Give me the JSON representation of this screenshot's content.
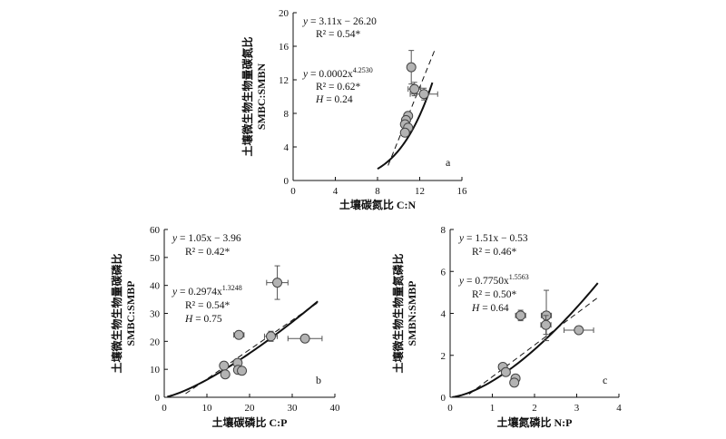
{
  "chart_data": [
    {
      "type": "scatter",
      "panel_label": "a",
      "xlabel": "土壤碳氮比 C:N",
      "ylabel": [
        "土壤微生物生物量碳氮比",
        "SMBC:SMBN"
      ],
      "xlim": [
        0,
        16
      ],
      "ylim": [
        0,
        20
      ],
      "xticks": [
        0,
        4,
        8,
        12,
        16
      ],
      "yticks": [
        0,
        4,
        8,
        12,
        16,
        20
      ],
      "equations": {
        "linear": [
          "y = 3.11x − 26.20",
          "R² = 0.54*"
        ],
        "power": [
          "y = 0.0002x^4.2530",
          "R² = 0.62*",
          "H = 0.24"
        ]
      },
      "points": [
        {
          "x": 11.2,
          "y": 13.5,
          "xerr": 0.3,
          "yerr": 2.0
        },
        {
          "x": 11.5,
          "y": 10.9,
          "xerr": 0.6,
          "yerr": 0.8
        },
        {
          "x": 12.4,
          "y": 10.3,
          "xerr": 1.3,
          "yerr": 0.7
        },
        {
          "x": 10.9,
          "y": 7.7,
          "xerr": 0.3,
          "yerr": 0.4
        },
        {
          "x": 10.7,
          "y": 7.2,
          "xerr": 0.2,
          "yerr": 0.3
        },
        {
          "x": 10.6,
          "y": 6.7,
          "xerr": 0.2,
          "yerr": 0.3
        },
        {
          "x": 10.9,
          "y": 6.3,
          "xerr": 0.3,
          "yerr": 0.4
        },
        {
          "x": 10.6,
          "y": 5.7,
          "xerr": 0.2,
          "yerr": 0.3
        }
      ],
      "fit_linear": {
        "slope": 3.11,
        "intercept": -26.2,
        "x_range": [
          9.0,
          13.5
        ]
      },
      "fit_power": {
        "a": 0.0002,
        "b": 4.253,
        "x_range": [
          8.0,
          13.2
        ]
      }
    },
    {
      "type": "scatter",
      "panel_label": "b",
      "xlabel": "土壤碳磷比 C:P",
      "ylabel": [
        "土壤微生物生物量碳磷比",
        "SMBC:SMBP"
      ],
      "xlim": [
        0,
        40
      ],
      "ylim": [
        0,
        60
      ],
      "xticks": [
        0,
        10,
        20,
        30,
        40
      ],
      "yticks": [
        0,
        10,
        20,
        30,
        40,
        50,
        60
      ],
      "equations": {
        "linear": [
          "y = 1.05x − 3.96",
          "R² = 0.42*"
        ],
        "power": [
          "y = 0.2974x^1.3248",
          "R² = 0.54*",
          "H = 0.75"
        ]
      },
      "points": [
        {
          "x": 26.5,
          "y": 41.0,
          "xerr": 2.5,
          "yerr": 6.0
        },
        {
          "x": 17.5,
          "y": 22.3,
          "xerr": 1.2,
          "yerr": 0.8
        },
        {
          "x": 25.0,
          "y": 21.8,
          "xerr": 1.5,
          "yerr": 1.8
        },
        {
          "x": 33.0,
          "y": 21.0,
          "xerr": 4.0,
          "yerr": 1.2
        },
        {
          "x": 17.2,
          "y": 12.3,
          "xerr": 0.8,
          "yerr": 0.8
        },
        {
          "x": 14.0,
          "y": 11.3,
          "xerr": 0.8,
          "yerr": 0.6
        },
        {
          "x": 17.3,
          "y": 9.8,
          "xerr": 0.6,
          "yerr": 0.6
        },
        {
          "x": 18.2,
          "y": 9.5,
          "xerr": 0.6,
          "yerr": 0.6
        },
        {
          "x": 14.3,
          "y": 8.2,
          "xerr": 0.6,
          "yerr": 0.6
        }
      ],
      "fit_linear": {
        "slope": 1.05,
        "intercept": -3.96,
        "x_range": [
          5.0,
          36.0
        ]
      },
      "fit_power": {
        "a": 0.2974,
        "b": 1.3248,
        "x_range": [
          0.7,
          36.0
        ]
      }
    },
    {
      "type": "scatter",
      "panel_label": "c",
      "xlabel": "土壤氮磷比 N:P",
      "ylabel": [
        "土壤微生物生物量氮磷比",
        "SMBN:SMBP"
      ],
      "xlim": [
        0,
        4
      ],
      "ylim": [
        0,
        8
      ],
      "xticks": [
        0,
        1,
        2,
        3,
        4
      ],
      "yticks": [
        0,
        2,
        4,
        6,
        8
      ],
      "equations": {
        "linear": [
          "y = 1.51x − 0.53",
          "R² = 0.46*"
        ],
        "power": [
          "y = 0.7750x^1.5563",
          "R² = 0.50*",
          "H = 0.64"
        ]
      },
      "points": [
        {
          "x": 2.28,
          "y": 3.9,
          "xerr": 0.12,
          "yerr": 1.2
        },
        {
          "x": 1.67,
          "y": 3.9,
          "xerr": 0.12,
          "yerr": 0.25
        },
        {
          "x": 2.27,
          "y": 3.45,
          "xerr": 0.12,
          "yerr": 0.45
        },
        {
          "x": 3.05,
          "y": 3.2,
          "xerr": 0.35,
          "yerr": 0.15
        },
        {
          "x": 1.25,
          "y": 1.45,
          "xerr": 0.1,
          "yerr": 0.15
        },
        {
          "x": 1.32,
          "y": 1.2,
          "xerr": 0.1,
          "yerr": 0.15
        },
        {
          "x": 1.55,
          "y": 0.9,
          "xerr": 0.06,
          "yerr": 0.15
        },
        {
          "x": 1.52,
          "y": 0.7,
          "xerr": 0.06,
          "yerr": 0.12
        }
      ],
      "fit_linear": {
        "slope": 1.51,
        "intercept": -0.53,
        "x_range": [
          0.45,
          3.5
        ]
      },
      "fit_power": {
        "a": 0.775,
        "b": 1.5563,
        "x_range": [
          0.05,
          3.5
        ]
      }
    }
  ]
}
